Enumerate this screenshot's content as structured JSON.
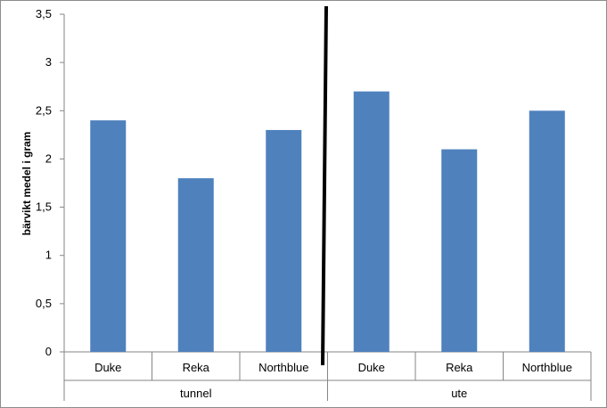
{
  "chart_data": {
    "type": "bar",
    "title": "",
    "xlabel": "",
    "ylabel": "bärvikt medel i gram",
    "ylim": [
      0,
      3.5
    ],
    "y_ticks": [
      "0",
      "0,5",
      "1",
      "1,5",
      "2",
      "2,5",
      "3",
      "3,5"
    ],
    "y_tick_values": [
      0,
      0.5,
      1,
      1.5,
      2,
      2.5,
      3,
      3.5
    ],
    "grid": false,
    "legend": "none",
    "groups": [
      {
        "label": "tunnel",
        "categories": [
          "Duke",
          "Reka",
          "Northblue"
        ],
        "values": [
          2.4,
          1.8,
          2.3
        ]
      },
      {
        "label": "ute",
        "categories": [
          "Duke",
          "Reka",
          "Northblue"
        ],
        "values": [
          2.7,
          2.1,
          2.5
        ]
      }
    ],
    "bar_color": "#4f81bd",
    "divider_color": "#000000"
  }
}
